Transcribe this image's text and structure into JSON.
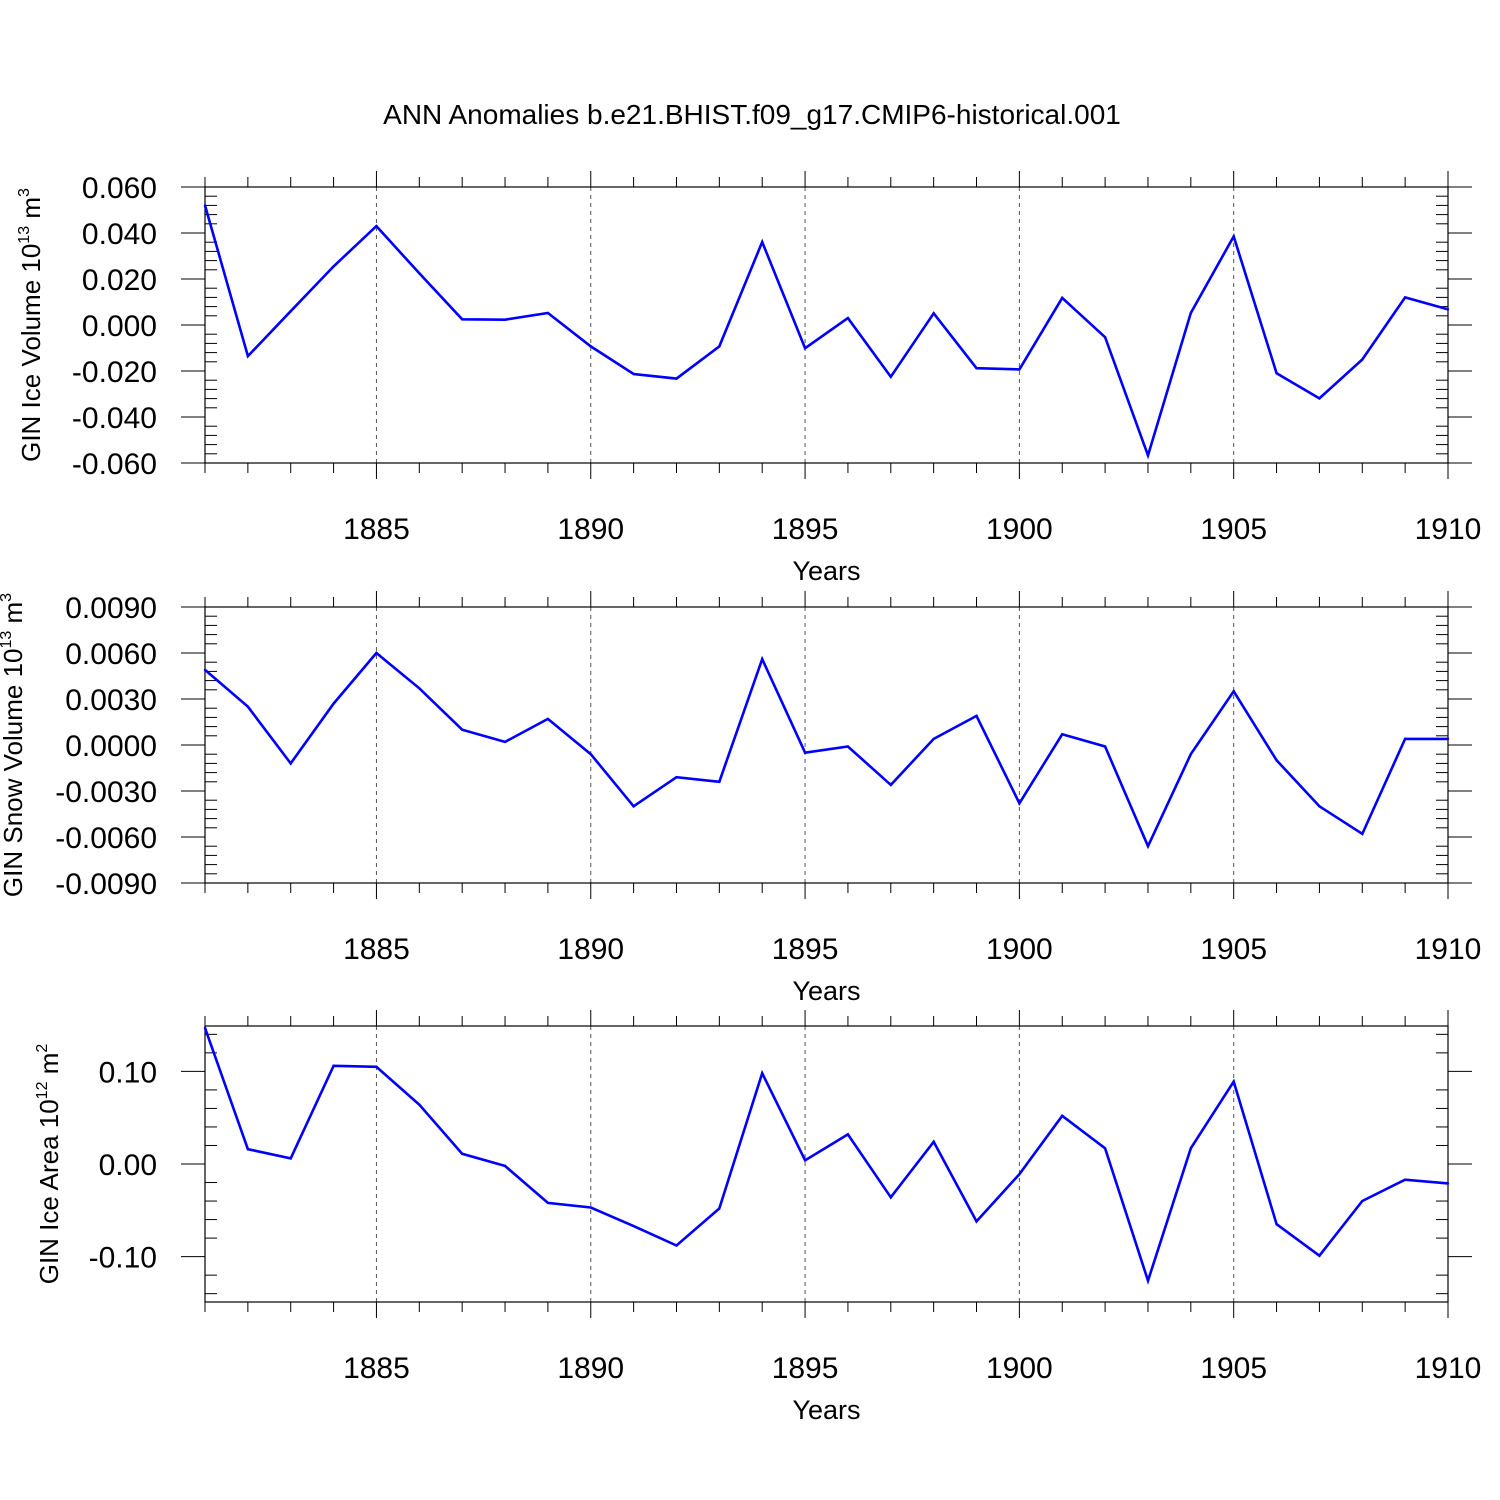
{
  "chart_data": {
    "title": "ANN Anomalies b.e21.BHIST.f09_g17.CMIP6-historical.001",
    "type": "line",
    "color": "#0000ff",
    "panels": [
      {
        "type": "line",
        "ylabel": "GIN Ice Volume 10",
        "ylabel_exp": "13",
        "ylabel_unit": "m",
        "ylabel_unit_exp": "3",
        "xlabel": "Years",
        "xlim": [
          1881,
          1910
        ],
        "ylim": [
          -0.06,
          0.06
        ],
        "grid": "dashed vertical at major x ticks",
        "yticks": [
          -0.06,
          -0.04,
          -0.02,
          0.0,
          0.02,
          0.04,
          0.06
        ],
        "ytick_labels": [
          "-0.060",
          "-0.040",
          "-0.020",
          "0.000",
          "0.020",
          "0.040",
          "0.060"
        ],
        "xticks": [
          1885,
          1890,
          1895,
          1900,
          1905,
          1910
        ],
        "xtick_labels": [
          "1885",
          "1890",
          "1895",
          "1900",
          "1905",
          "1910"
        ],
        "x": [
          1881,
          1882,
          1883,
          1884,
          1885,
          1886,
          1887,
          1888,
          1889,
          1890,
          1891,
          1892,
          1893,
          1894,
          1895,
          1896,
          1897,
          1898,
          1899,
          1900,
          1901,
          1902,
          1903,
          1904,
          1905,
          1906,
          1907,
          1908,
          1909,
          1910
        ],
        "values": [
          0.052,
          -0.0135,
          0.006,
          0.0255,
          0.043,
          0.0225,
          0.0025,
          0.0023,
          0.0052,
          -0.0093,
          -0.0213,
          -0.0233,
          -0.0093,
          0.0361,
          -0.0101,
          0.003,
          -0.0225,
          0.0051,
          -0.0188,
          -0.0193,
          0.0118,
          -0.0053,
          -0.0567,
          0.0052,
          0.0385,
          -0.021,
          -0.0319,
          -0.015,
          0.012,
          0.0068
        ]
      },
      {
        "type": "line",
        "ylabel": "GIN Snow Volume 10",
        "ylabel_exp": "13",
        "ylabel_unit": "m",
        "ylabel_unit_exp": "3",
        "xlabel": "Years",
        "xlim": [
          1881,
          1910
        ],
        "ylim": [
          -0.009,
          0.009
        ],
        "grid": "dashed vertical at major x ticks",
        "yticks": [
          -0.009,
          -0.006,
          -0.003,
          0.0,
          0.003,
          0.006,
          0.009
        ],
        "ytick_labels": [
          "-0.0090",
          "-0.0060",
          "-0.0030",
          "0.0000",
          "0.0030",
          "0.0060",
          "0.0090"
        ],
        "xticks": [
          1885,
          1890,
          1895,
          1900,
          1905,
          1910
        ],
        "xtick_labels": [
          "1885",
          "1890",
          "1895",
          "1900",
          "1905",
          "1910"
        ],
        "x": [
          1881,
          1882,
          1883,
          1884,
          1885,
          1886,
          1887,
          1888,
          1889,
          1890,
          1891,
          1892,
          1893,
          1894,
          1895,
          1896,
          1897,
          1898,
          1899,
          1900,
          1901,
          1902,
          1903,
          1904,
          1905,
          1906,
          1907,
          1908,
          1909,
          1910
        ],
        "values": [
          0.0049,
          0.0025,
          -0.0012,
          0.0027,
          0.006,
          0.0037,
          0.001,
          0.0002,
          0.0017,
          -0.0006,
          -0.004,
          -0.0021,
          -0.0024,
          0.0056,
          -0.0005,
          -0.0001,
          -0.0026,
          0.0004,
          0.0019,
          -0.0038,
          0.0007,
          -0.0001,
          -0.0066,
          -0.0006,
          0.0035,
          -0.001,
          -0.004,
          -0.0058,
          0.0004,
          0.0004
        ]
      },
      {
        "type": "line",
        "ylabel": "GIN Ice Area 10",
        "ylabel_exp": "12",
        "ylabel_unit": "m",
        "ylabel_unit_exp": "2",
        "xlabel": "Years",
        "xlim": [
          1881,
          1910
        ],
        "ylim": [
          -0.149,
          0.149
        ],
        "grid": "dashed vertical at major x ticks",
        "yticks": [
          -0.1,
          0.0,
          0.1
        ],
        "ytick_labels": [
          "-0.10",
          "0.00",
          "0.10"
        ],
        "xticks": [
          1885,
          1890,
          1895,
          1900,
          1905,
          1910
        ],
        "xtick_labels": [
          "1885",
          "1890",
          "1895",
          "1900",
          "1905",
          "1910"
        ],
        "x": [
          1881,
          1882,
          1883,
          1884,
          1885,
          1886,
          1887,
          1888,
          1889,
          1890,
          1891,
          1892,
          1893,
          1894,
          1895,
          1896,
          1897,
          1898,
          1899,
          1900,
          1901,
          1902,
          1903,
          1904,
          1905,
          1906,
          1907,
          1908,
          1909,
          1910
        ],
        "values": [
          0.147,
          0.016,
          0.006,
          0.106,
          0.105,
          0.064,
          0.011,
          -0.002,
          -0.042,
          -0.047,
          -0.067,
          -0.088,
          -0.048,
          0.098,
          0.004,
          0.032,
          -0.036,
          0.024,
          -0.062,
          -0.011,
          0.052,
          0.017,
          -0.126,
          0.017,
          0.089,
          -0.065,
          -0.099,
          -0.04,
          -0.017,
          -0.021
        ]
      }
    ]
  }
}
